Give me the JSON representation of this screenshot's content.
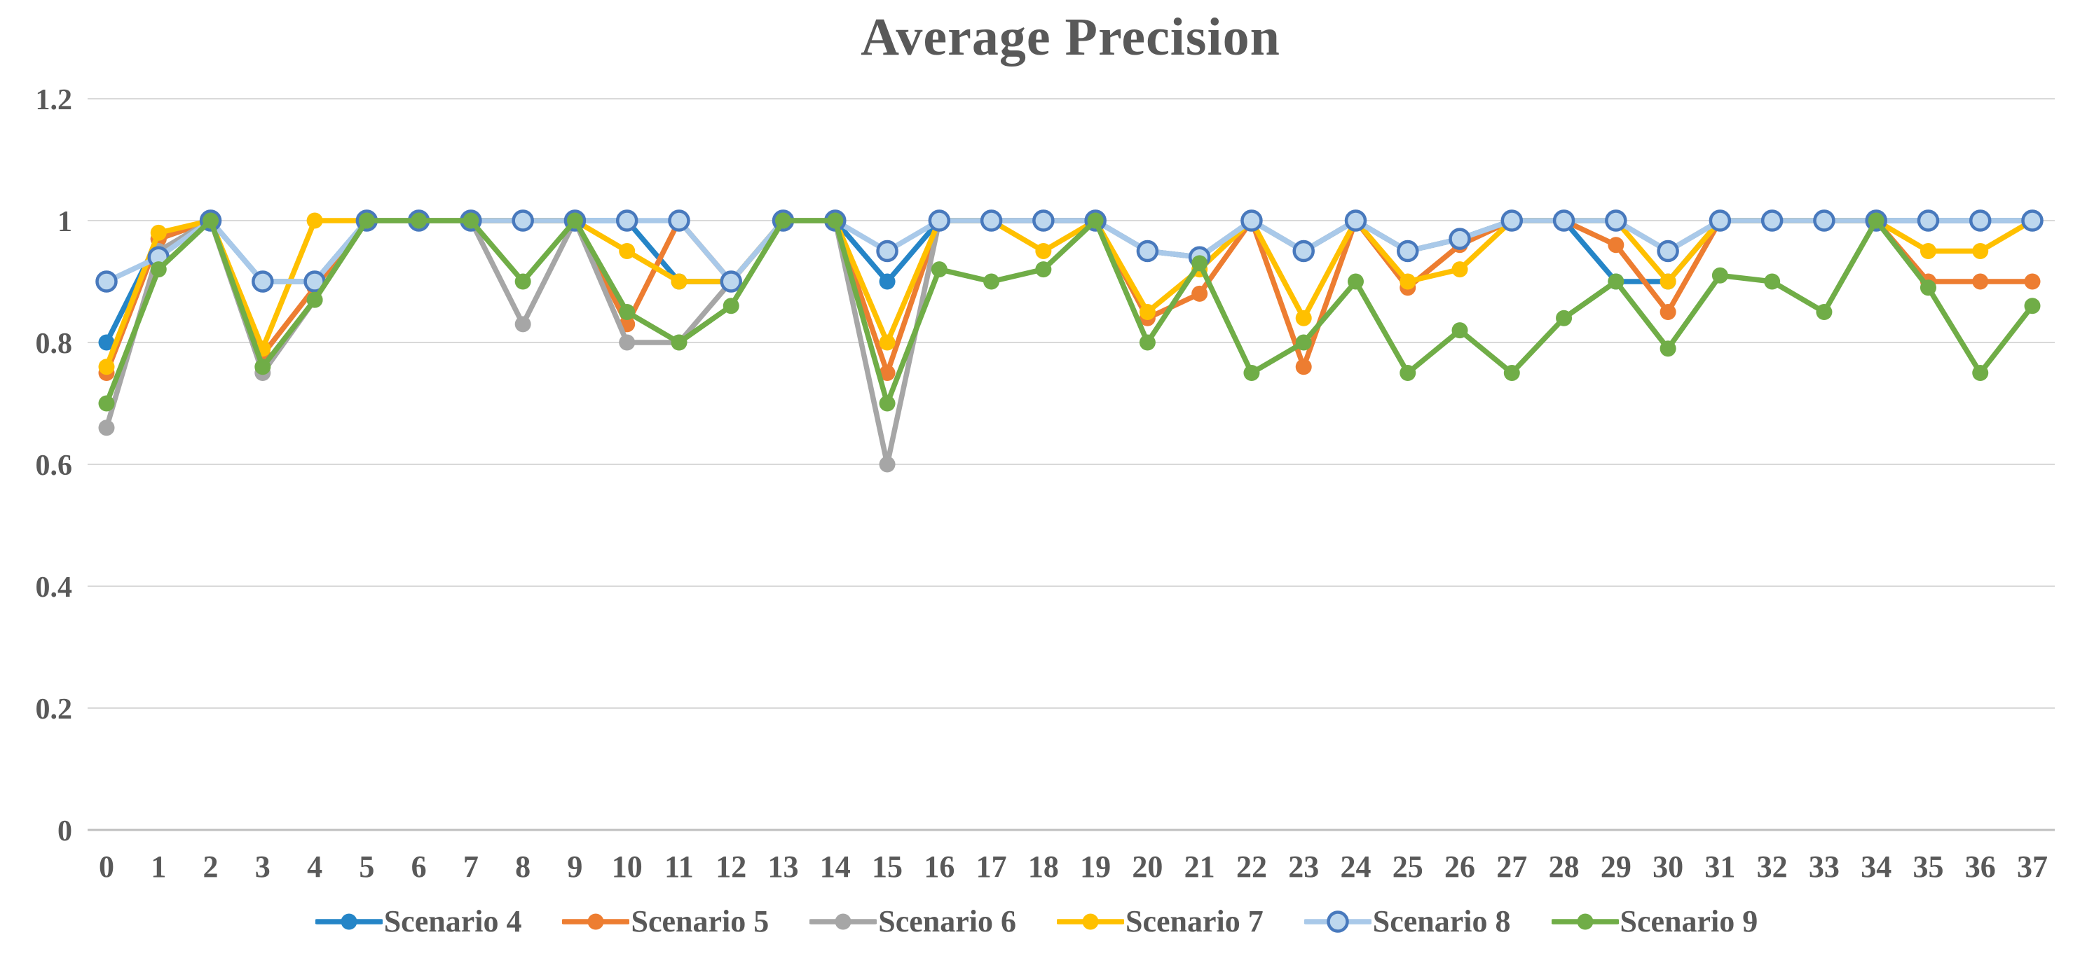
{
  "title": "Average Precision",
  "styles": {
    "title_color": "#595959",
    "axis_label_color": "#595959",
    "gridline_color": "#D9D9D9",
    "axis_line_color": "#BFBFBF",
    "background": "#FFFFFF"
  },
  "chart_data": {
    "type": "line",
    "title": "Average Precision",
    "xlabel": "",
    "ylabel": "",
    "grid": true,
    "legend_position": "bottom",
    "ylim": [
      0,
      1.2
    ],
    "yticks": [
      0,
      0.2,
      0.4,
      0.6,
      0.8,
      1,
      1.2
    ],
    "ytick_labels": [
      "0",
      "0.2",
      "0.4",
      "0.6",
      "0.8",
      "1",
      "1.2"
    ],
    "categories": [
      "0",
      "1",
      "2",
      "3",
      "4",
      "5",
      "6",
      "7",
      "8",
      "9",
      "10",
      "11",
      "12",
      "13",
      "14",
      "15",
      "16",
      "17",
      "18",
      "19",
      "20",
      "21",
      "22",
      "23",
      "24",
      "25",
      "26",
      "27",
      "28",
      "29",
      "30",
      "31",
      "32",
      "33",
      "34",
      "35",
      "36",
      "37"
    ],
    "series": [
      {
        "name": "Scenario 4",
        "color": "#2585C7",
        "marker": "filled-circle",
        "values": [
          0.8,
          0.97,
          1.0,
          0.9,
          0.9,
          1.0,
          1.0,
          1.0,
          1.0,
          1.0,
          1.0,
          0.9,
          0.9,
          1.0,
          1.0,
          0.9,
          1.0,
          1.0,
          1.0,
          1.0,
          0.95,
          0.94,
          1.0,
          0.95,
          1.0,
          0.95,
          0.97,
          1.0,
          1.0,
          0.9,
          0.9,
          1.0,
          1.0,
          1.0,
          1.0,
          1.0,
          1.0,
          1.0
        ]
      },
      {
        "name": "Scenario 5",
        "color": "#ED7D31",
        "marker": "filled-circle",
        "values": [
          0.75,
          0.97,
          1.0,
          0.78,
          0.89,
          1.0,
          1.0,
          1.0,
          1.0,
          1.0,
          0.83,
          1.0,
          0.9,
          1.0,
          1.0,
          0.75,
          1.0,
          1.0,
          1.0,
          1.0,
          0.84,
          0.88,
          1.0,
          0.76,
          1.0,
          0.89,
          0.96,
          1.0,
          1.0,
          0.96,
          0.85,
          1.0,
          1.0,
          1.0,
          1.0,
          0.9,
          0.9,
          0.9
        ]
      },
      {
        "name": "Scenario 6",
        "color": "#A6A6A6",
        "marker": "filled-circle",
        "values": [
          0.66,
          0.95,
          1.0,
          0.75,
          0.87,
          1.0,
          1.0,
          1.0,
          0.83,
          1.0,
          0.8,
          0.8,
          0.9,
          1.0,
          1.0,
          0.6,
          1.0,
          1.0,
          1.0,
          1.0,
          0.95,
          0.94,
          1.0,
          0.95,
          1.0,
          0.95,
          0.97,
          1.0,
          1.0,
          1.0,
          0.95,
          1.0,
          1.0,
          1.0,
          1.0,
          1.0,
          1.0,
          1.0
        ]
      },
      {
        "name": "Scenario 7",
        "color": "#FFC000",
        "marker": "filled-circle",
        "values": [
          0.76,
          0.98,
          1.0,
          0.79,
          1.0,
          1.0,
          1.0,
          1.0,
          1.0,
          1.0,
          0.95,
          0.9,
          0.9,
          1.0,
          1.0,
          0.8,
          1.0,
          1.0,
          0.95,
          1.0,
          0.85,
          0.92,
          1.0,
          0.84,
          1.0,
          0.9,
          0.92,
          1.0,
          1.0,
          1.0,
          0.9,
          1.0,
          1.0,
          1.0,
          1.0,
          0.95,
          0.95,
          1.0
        ]
      },
      {
        "name": "Scenario 8",
        "color": "#A9C9E9",
        "marker": "open-circle",
        "marker_fill": "#BDD7EE",
        "marker_stroke": "#4879BD",
        "values": [
          0.9,
          0.94,
          1.0,
          0.9,
          0.9,
          1.0,
          1.0,
          1.0,
          1.0,
          1.0,
          1.0,
          1.0,
          0.9,
          1.0,
          1.0,
          0.95,
          1.0,
          1.0,
          1.0,
          1.0,
          0.95,
          0.94,
          1.0,
          0.95,
          1.0,
          0.95,
          0.97,
          1.0,
          1.0,
          1.0,
          0.95,
          1.0,
          1.0,
          1.0,
          1.0,
          1.0,
          1.0,
          1.0
        ]
      },
      {
        "name": "Scenario 9",
        "color": "#70AD47",
        "marker": "filled-circle",
        "values": [
          0.7,
          0.92,
          1.0,
          0.76,
          0.87,
          1.0,
          1.0,
          1.0,
          0.9,
          1.0,
          0.85,
          0.8,
          0.86,
          1.0,
          1.0,
          0.7,
          0.92,
          0.9,
          0.92,
          1.0,
          0.8,
          0.93,
          0.75,
          0.8,
          0.9,
          0.75,
          0.82,
          0.75,
          0.84,
          0.9,
          0.79,
          0.91,
          0.9,
          0.85,
          1.0,
          0.89,
          0.75,
          0.86
        ]
      }
    ]
  }
}
